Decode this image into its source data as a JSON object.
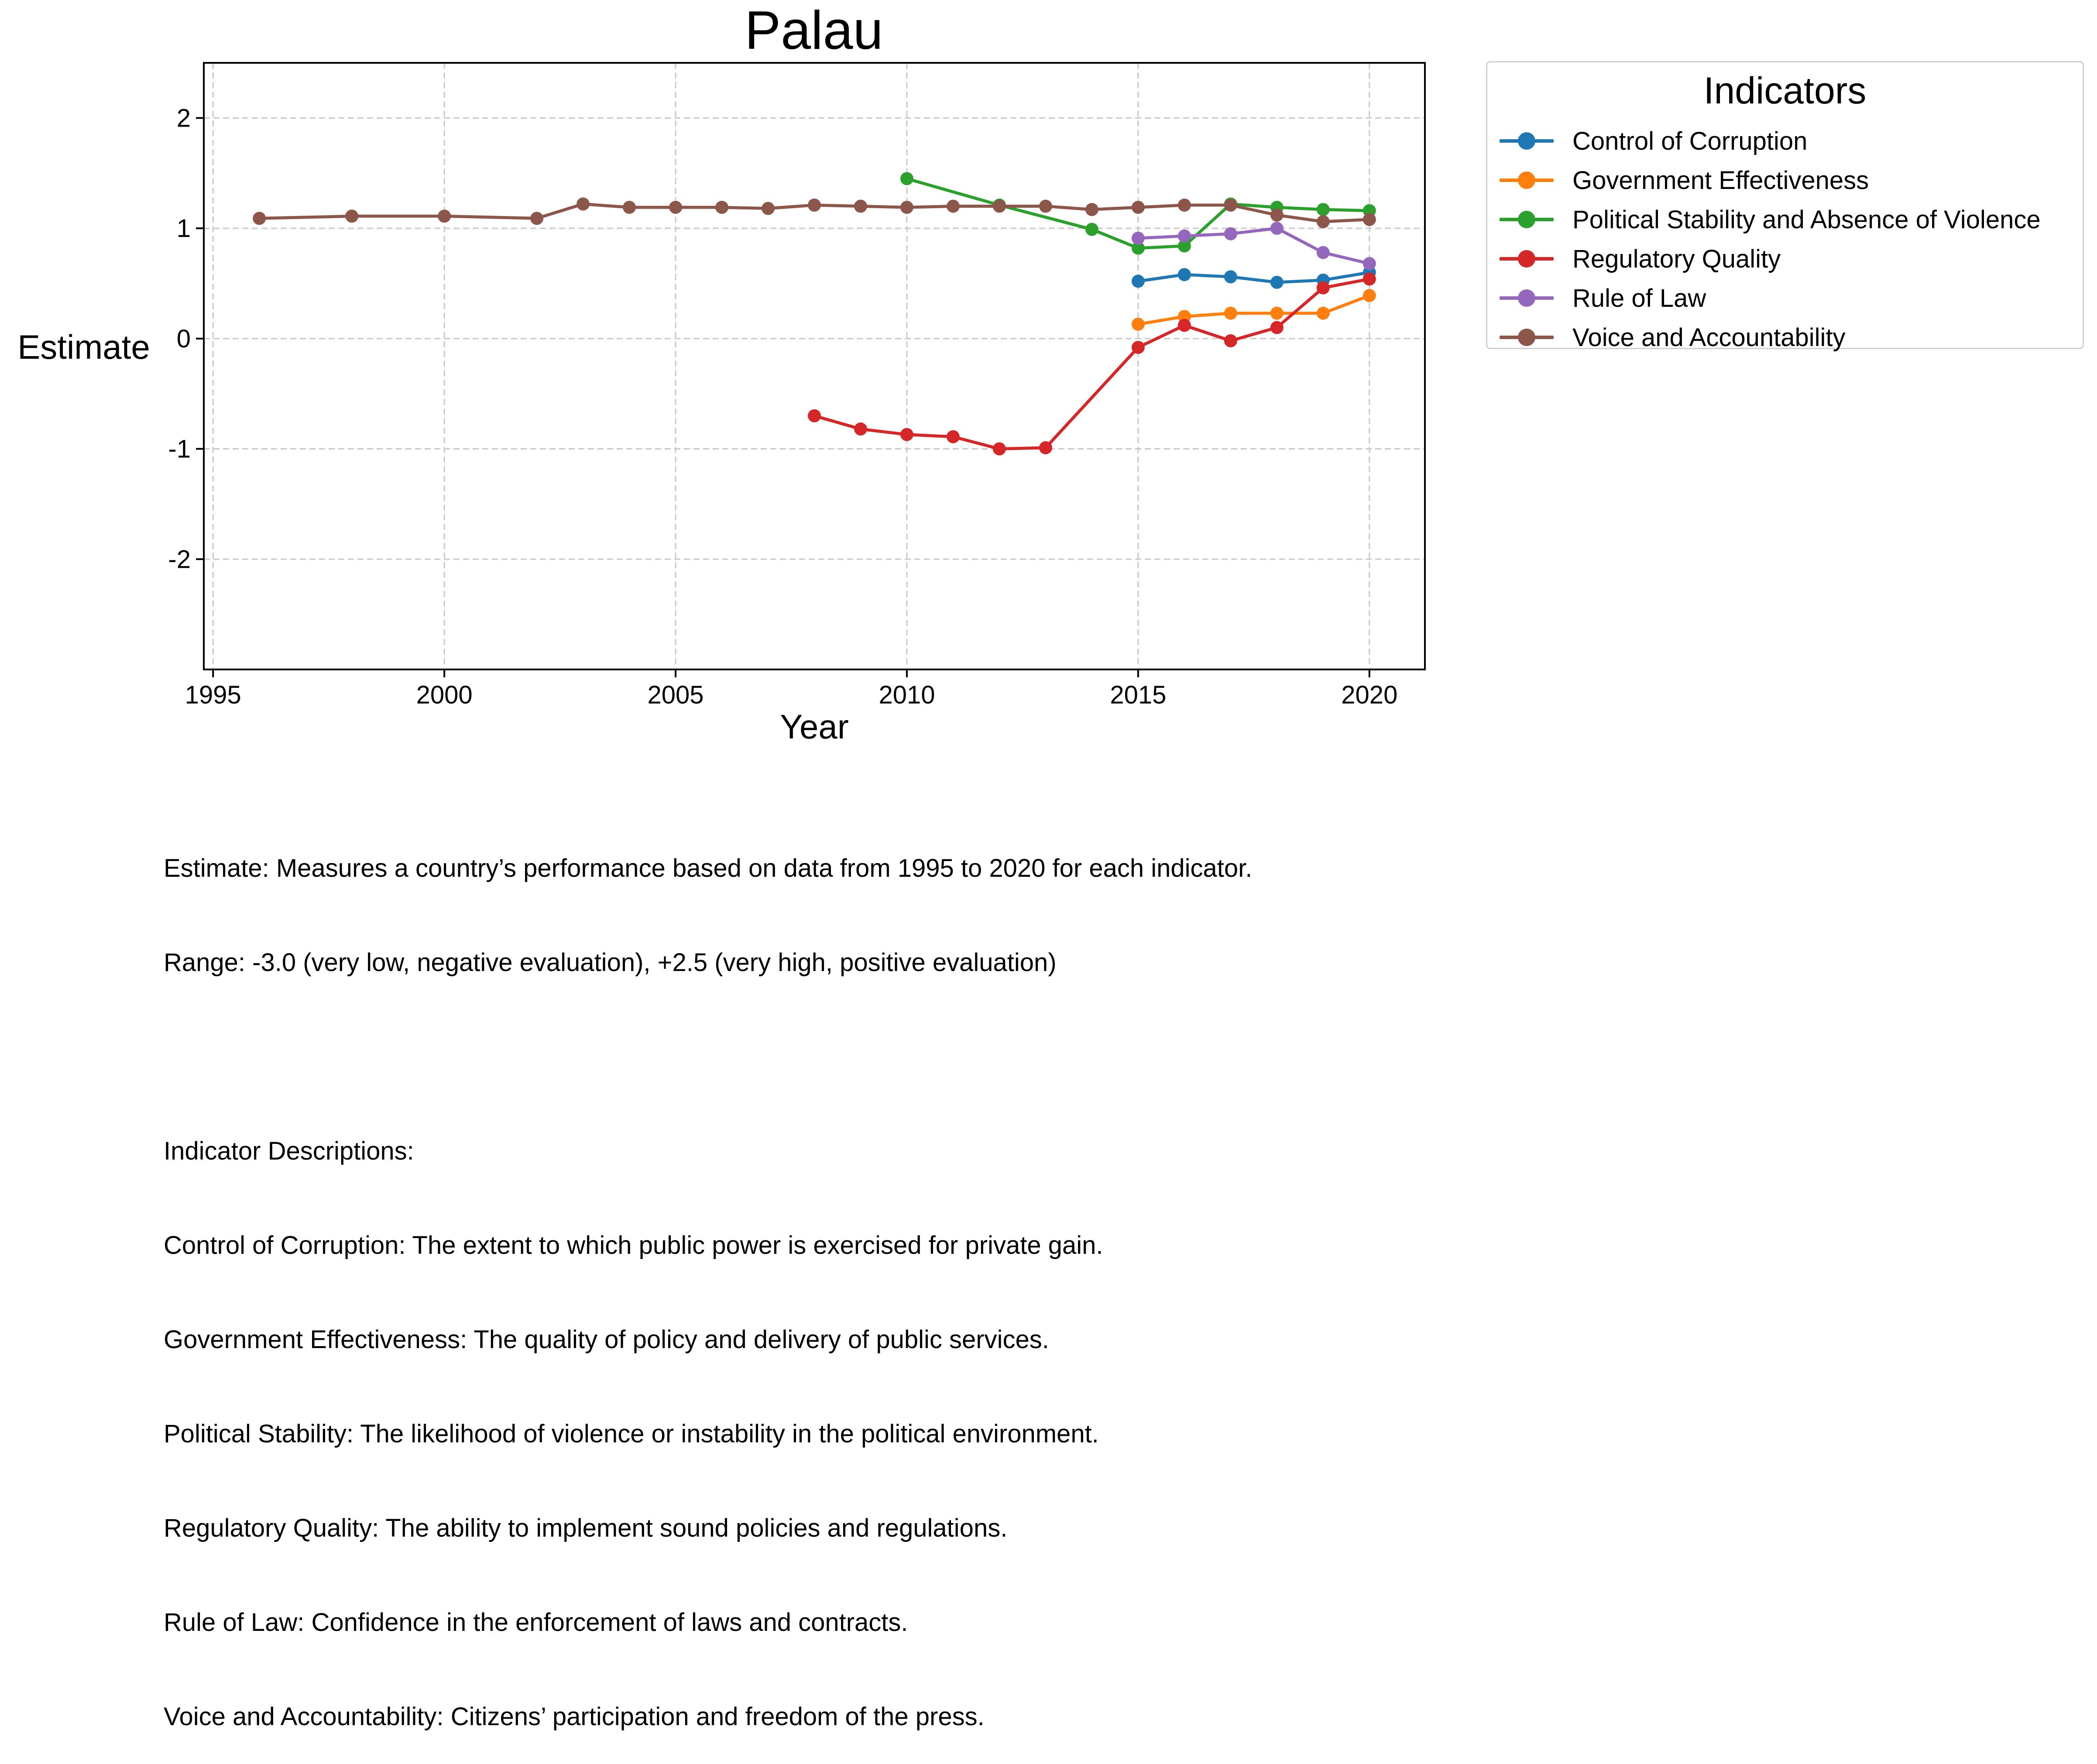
{
  "chart_data": {
    "type": "line",
    "title": "Palau",
    "xlabel": "Year",
    "ylabel": "Estimate",
    "xlim": [
      1994.8,
      2021.2
    ],
    "ylim": [
      -3.0,
      2.5
    ],
    "xticks": [
      1995,
      2000,
      2005,
      2010,
      2015,
      2020
    ],
    "yticks": [
      -2,
      -1,
      0,
      1,
      2
    ],
    "grid": true,
    "legend": {
      "title": "Indicators",
      "placement": "outside-right-top"
    },
    "series": [
      {
        "name": "Control of Corruption",
        "color": "#1f77b4",
        "x": [
          2015,
          2016,
          2017,
          2018,
          2019,
          2020
        ],
        "values": [
          0.52,
          0.58,
          0.56,
          0.51,
          0.53,
          0.6
        ]
      },
      {
        "name": "Government Effectiveness",
        "color": "#ff7f0e",
        "x": [
          2015,
          2016,
          2017,
          2018,
          2019,
          2020
        ],
        "values": [
          0.13,
          0.2,
          0.23,
          0.23,
          0.23,
          0.39
        ]
      },
      {
        "name": "Political Stability and Absence of Violence",
        "color": "#2ca02c",
        "x": [
          2010,
          2012,
          2014,
          2015,
          2016,
          2017,
          2018,
          2019,
          2020
        ],
        "values": [
          1.45,
          1.21,
          0.99,
          0.82,
          0.84,
          1.22,
          1.19,
          1.17,
          1.16
        ]
      },
      {
        "name": "Regulatory Quality",
        "color": "#d62728",
        "x": [
          2008,
          2009,
          2010,
          2011,
          2012,
          2013,
          2015,
          2016,
          2017,
          2018,
          2019,
          2020
        ],
        "values": [
          -0.7,
          -0.82,
          -0.87,
          -0.89,
          -1.0,
          -0.99,
          -0.08,
          0.12,
          -0.02,
          0.1,
          0.46,
          0.54
        ]
      },
      {
        "name": "Rule of Law",
        "color": "#9467bd",
        "x": [
          2015,
          2016,
          2017,
          2018,
          2019,
          2020
        ],
        "values": [
          0.91,
          0.93,
          0.95,
          1.0,
          0.78,
          0.68
        ]
      },
      {
        "name": "Voice and Accountability",
        "color": "#8c564b",
        "x": [
          1996,
          1998,
          2000,
          2002,
          2003,
          2004,
          2005,
          2006,
          2007,
          2008,
          2009,
          2010,
          2011,
          2012,
          2013,
          2014,
          2015,
          2016,
          2017,
          2018,
          2019,
          2020
        ],
        "values": [
          1.09,
          1.11,
          1.11,
          1.09,
          1.22,
          1.19,
          1.19,
          1.19,
          1.18,
          1.21,
          1.2,
          1.19,
          1.2,
          1.2,
          1.2,
          1.17,
          1.19,
          1.21,
          1.21,
          1.12,
          1.06,
          1.08
        ]
      }
    ]
  },
  "notes": {
    "estimate_line": "Estimate: Measures a country’s performance based on data from 1995 to 2020 for each indicator.",
    "range_line": "Range: -3.0 (very low, negative evaluation), +2.5 (very high, positive evaluation)",
    "descriptions_heading": "Indicator Descriptions:",
    "descriptions": [
      "Control of Corruption: The extent to which public power is exercised for private gain.",
      "Government Effectiveness: The quality of policy and delivery of public services.",
      "Political Stability: The likelihood of violence or instability in the political environment.",
      "Regulatory Quality: The ability to implement sound policies and regulations.",
      "Rule of Law: Confidence in the enforcement of laws and contracts.",
      "Voice and Accountability: Citizens’ participation and freedom of the press."
    ]
  }
}
